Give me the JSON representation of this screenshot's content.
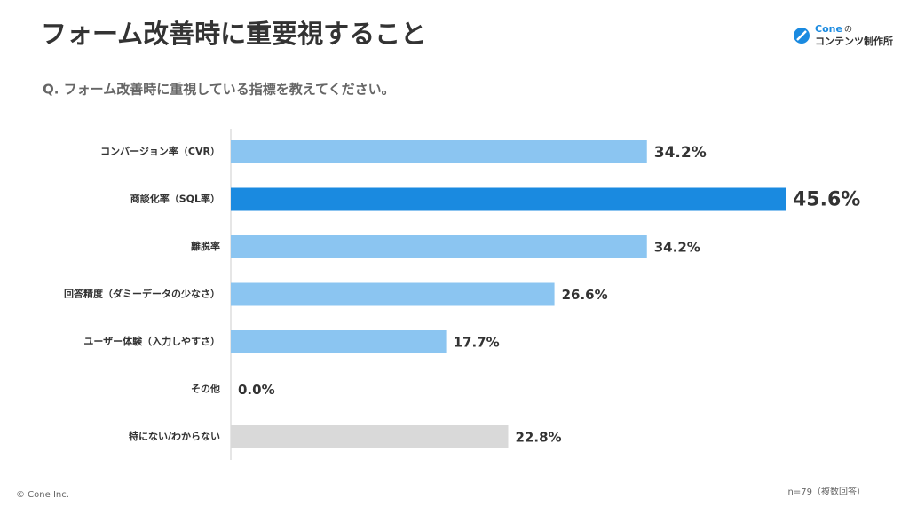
{
  "header": {
    "title": "フォーム改善時に重要視すること",
    "question": "Q. フォーム改善時に重視している指標を教えてください。",
    "logo_name": "Cone",
    "logo_no": "の",
    "logo_sub": "コンテンツ制作所"
  },
  "chart_data": {
    "type": "bar",
    "orientation": "horizontal",
    "categories": [
      "コンバージョン率（CVR）",
      "商談化率（SQL率）",
      "離脱率",
      "回答精度（ダミーデータの少なさ）",
      "ユーザー体験（入力しやすさ）",
      "その他",
      "特にない/わからない"
    ],
    "values": [
      34.2,
      45.6,
      34.2,
      26.6,
      17.7,
      0.0,
      22.8
    ],
    "value_labels": [
      "34.2%",
      "45.6%",
      "34.2%",
      "26.6%",
      "17.7%",
      "0.0%",
      "22.8%"
    ],
    "colors": [
      "#8bc5f1",
      "#1a8ae0",
      "#8bc5f1",
      "#8bc5f1",
      "#8bc5f1",
      "#8bc5f1",
      "#d9d9d9"
    ]
  },
  "footer": {
    "copyright": "© Cone Inc.",
    "note": "n=79（複数回答）"
  }
}
